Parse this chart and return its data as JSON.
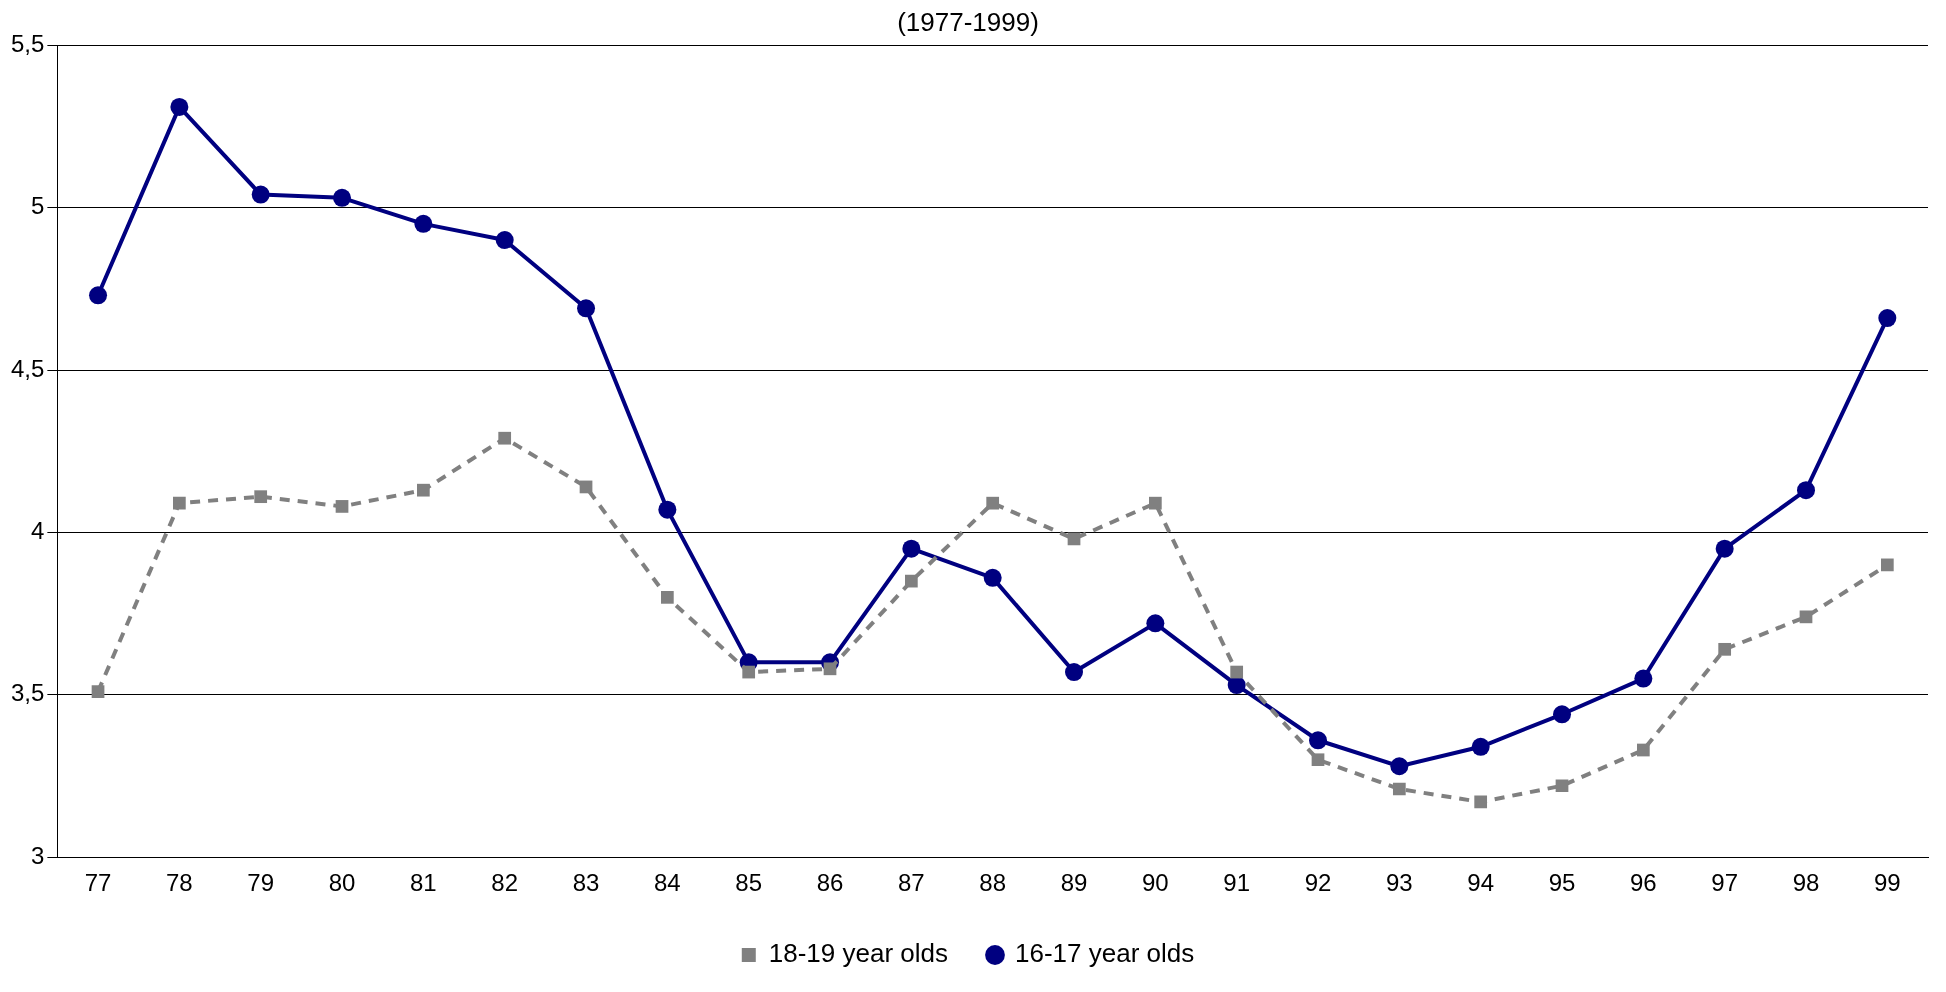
{
  "chart_data": {
    "type": "line",
    "title": "(1977-1999)",
    "categories": [
      "77",
      "78",
      "79",
      "80",
      "81",
      "82",
      "83",
      "84",
      "85",
      "86",
      "87",
      "88",
      "89",
      "90",
      "91",
      "92",
      "93",
      "94",
      "95",
      "96",
      "97",
      "98",
      "99"
    ],
    "series": [
      {
        "name": "16-17 year olds",
        "color": "#000080",
        "marker": "circle",
        "line_style": "solid",
        "values": [
          4.73,
          5.31,
          5.04,
          5.03,
          4.95,
          4.9,
          4.69,
          4.07,
          3.6,
          3.6,
          3.95,
          3.86,
          3.57,
          3.72,
          3.53,
          3.36,
          3.28,
          3.34,
          3.44,
          3.55,
          3.95,
          4.13,
          4.66
        ]
      },
      {
        "name": "18-19 year olds",
        "color": "#808080",
        "marker": "square",
        "line_style": "dashed",
        "values": [
          3.51,
          4.09,
          4.11,
          4.08,
          4.13,
          4.29,
          4.14,
          3.8,
          3.57,
          3.58,
          3.85,
          4.09,
          3.98,
          4.09,
          3.57,
          3.3,
          3.21,
          3.17,
          3.22,
          3.33,
          3.64,
          3.74,
          3.9
        ]
      }
    ],
    "ylim": [
      3,
      5.5
    ],
    "yticks": [
      3,
      {
        "value": 3.5,
        "label": "3,5"
      },
      4,
      {
        "value": 4.5,
        "label": "4,5"
      },
      5,
      {
        "value": 5.5,
        "label": "5,5"
      }
    ],
    "grid": "y",
    "legend": "bottom"
  }
}
